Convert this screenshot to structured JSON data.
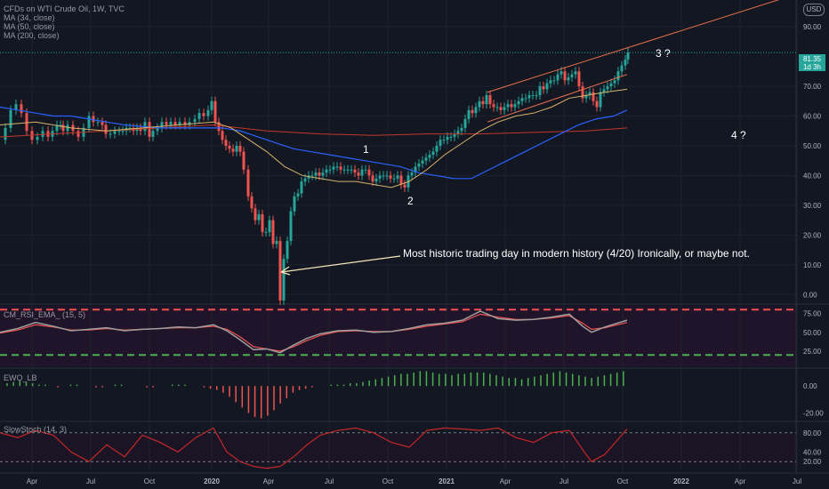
{
  "legend": {
    "symbol": "CFDs on WTI Crude Oil, 1W, TVC",
    "ma1": "MA (34, close)",
    "ma2": "MA (50, close)",
    "ma3": "MA (200, close)"
  },
  "currency": "USD",
  "last_price": {
    "value": "81.35",
    "countdown": "1d 3h"
  },
  "annotations": {
    "wave1": "1",
    "wave2": "2",
    "wave3": "3 ?",
    "wave4": "4 ?",
    "note": "Most historic trading day in modern history (4/20) Ironically, or maybe not."
  },
  "panes": {
    "rsi": "CM_RSI_EMA_ (15, 5)",
    "ewo": "EWO_LB",
    "stoch": "SlowStoch (14, 3)"
  },
  "colors": {
    "background": "#131722",
    "up": "#26a69a",
    "down": "#ef5350",
    "ma34": "#d9b36c",
    "ma50": "#2962ff",
    "ma200": "#c0392b",
    "trendline": "#e8704c"
  },
  "chart_data": {
    "type": "candlestick",
    "timeframe": "1W",
    "x_axis_labels": [
      "Apr",
      "Jul",
      "Oct",
      "2020",
      "Apr",
      "Jul",
      "Oct",
      "2021",
      "Apr",
      "Jul",
      "Oct",
      "2022",
      "Apr",
      "Jul"
    ],
    "price_axis": {
      "ticks": [
        "0.00",
        "10.00",
        "20.00",
        "30.00",
        "40.00",
        "50.00",
        "60.00",
        "70.00",
        "90.00"
      ],
      "range": [
        -2,
        99
      ]
    },
    "rsi_axis": {
      "ticks": [
        "25.00",
        "50.00",
        "75.00"
      ],
      "range": [
        5,
        85
      ]
    },
    "ewo_axis": {
      "ticks": [
        "0.00",
        "-20.00"
      ],
      "range": [
        -25,
        12
      ]
    },
    "stoch_axis": {
      "ticks": [
        "20.00",
        "40.00",
        "80.00"
      ],
      "range": [
        0,
        100
      ]
    },
    "price_path": [
      [
        0,
        52
      ],
      [
        6,
        56
      ],
      [
        12,
        62
      ],
      [
        18,
        64
      ],
      [
        24,
        61
      ],
      [
        30,
        55
      ],
      [
        36,
        52
      ],
      [
        42,
        53
      ],
      [
        48,
        55
      ],
      [
        54,
        53
      ],
      [
        59,
        55
      ],
      [
        64,
        57
      ],
      [
        68,
        57
      ],
      [
        71,
        55
      ],
      [
        76,
        57
      ],
      [
        82,
        55
      ],
      [
        88,
        53
      ],
      [
        94,
        56
      ],
      [
        100,
        60
      ],
      [
        105,
        58
      ],
      [
        110,
        58
      ],
      [
        115,
        57
      ],
      [
        119,
        54
      ],
      [
        124,
        54
      ],
      [
        129,
        55
      ],
      [
        134,
        55
      ],
      [
        138,
        55
      ],
      [
        142,
        56
      ],
      [
        146,
        56
      ],
      [
        150,
        55
      ],
      [
        154,
        56
      ],
      [
        158,
        55
      ],
      [
        163,
        58
      ],
      [
        168,
        53
      ],
      [
        172,
        55
      ],
      [
        177,
        56
      ],
      [
        182,
        58
      ],
      [
        187,
        57
      ],
      [
        192,
        58
      ],
      [
        197,
        57
      ],
      [
        202,
        58
      ],
      [
        208,
        57
      ],
      [
        213,
        58
      ],
      [
        219,
        59
      ],
      [
        224,
        61
      ],
      [
        229,
        60
      ],
      [
        234,
        62
      ],
      [
        238,
        65
      ],
      [
        242,
        58
      ],
      [
        246,
        55
      ],
      [
        250,
        52
      ],
      [
        254,
        50
      ],
      [
        258,
        49
      ],
      [
        262,
        48
      ],
      [
        266,
        50
      ],
      [
        270,
        48
      ],
      [
        274,
        42
      ],
      [
        279,
        33
      ],
      [
        283,
        29
      ],
      [
        287,
        25
      ],
      [
        291,
        27
      ],
      [
        295,
        21
      ],
      [
        299,
        21
      ],
      [
        303,
        25
      ],
      [
        307,
        17
      ],
      [
        311,
        18
      ],
      [
        315,
        -2
      ],
      [
        319,
        12
      ],
      [
        323,
        18
      ],
      [
        327,
        28
      ],
      [
        331,
        33
      ],
      [
        335,
        34
      ],
      [
        339,
        38
      ],
      [
        343,
        39
      ],
      [
        347,
        40
      ],
      [
        351,
        40
      ],
      [
        355,
        41
      ],
      [
        359,
        40
      ],
      [
        363,
        41
      ],
      [
        367,
        42
      ],
      [
        371,
        42
      ],
      [
        375,
        43
      ],
      [
        379,
        43
      ],
      [
        383,
        42
      ],
      [
        387,
        42
      ],
      [
        391,
        42
      ],
      [
        395,
        42
      ],
      [
        399,
        41
      ],
      [
        403,
        40
      ],
      [
        407,
        42
      ],
      [
        411,
        42
      ],
      [
        415,
        40
      ],
      [
        419,
        38
      ],
      [
        423,
        39
      ],
      [
        427,
        40
      ],
      [
        431,
        40
      ],
      [
        435,
        40
      ],
      [
        439,
        39
      ],
      [
        443,
        39
      ],
      [
        447,
        40
      ],
      [
        451,
        37
      ],
      [
        455,
        36
      ],
      [
        459,
        40
      ],
      [
        463,
        41
      ],
      [
        467,
        43
      ],
      [
        471,
        44
      ],
      [
        475,
        45
      ],
      [
        479,
        46
      ],
      [
        483,
        47
      ],
      [
        487,
        48
      ],
      [
        491,
        50
      ],
      [
        495,
        52
      ],
      [
        499,
        52
      ],
      [
        503,
        53
      ],
      [
        507,
        53
      ],
      [
        511,
        54
      ],
      [
        515,
        55
      ],
      [
        519,
        56
      ],
      [
        523,
        59
      ],
      [
        527,
        62
      ],
      [
        531,
        61
      ],
      [
        535,
        63
      ],
      [
        539,
        65
      ],
      [
        543,
        64
      ],
      [
        547,
        67
      ],
      [
        551,
        64
      ],
      [
        555,
        63
      ],
      [
        559,
        63
      ],
      [
        563,
        62
      ],
      [
        567,
        63
      ],
      [
        571,
        64
      ],
      [
        575,
        63
      ],
      [
        579,
        64
      ],
      [
        583,
        65
      ],
      [
        587,
        66
      ],
      [
        591,
        66
      ],
      [
        595,
        67
      ],
      [
        599,
        67
      ],
      [
        603,
        67
      ],
      [
        607,
        70
      ],
      [
        611,
        69
      ],
      [
        615,
        71
      ],
      [
        619,
        72
      ],
      [
        623,
        72
      ],
      [
        627,
        74
      ],
      [
        631,
        75
      ],
      [
        635,
        72
      ],
      [
        639,
        73
      ],
      [
        643,
        74
      ],
      [
        647,
        75
      ],
      [
        651,
        70
      ],
      [
        655,
        66
      ],
      [
        659,
        67
      ],
      [
        663,
        68
      ],
      [
        667,
        65
      ],
      [
        671,
        63
      ],
      [
        675,
        68
      ],
      [
        679,
        69
      ],
      [
        683,
        70
      ],
      [
        687,
        71
      ],
      [
        691,
        72
      ],
      [
        695,
        75
      ],
      [
        699,
        77
      ],
      [
        703,
        79
      ],
      [
        706,
        81.35
      ]
    ],
    "ma34_path": [
      [
        0,
        57
      ],
      [
        40,
        58
      ],
      [
        80,
        56
      ],
      [
        120,
        55
      ],
      [
        160,
        56
      ],
      [
        200,
        57
      ],
      [
        240,
        58
      ],
      [
        260,
        56
      ],
      [
        280,
        52
      ],
      [
        300,
        48
      ],
      [
        320,
        43
      ],
      [
        340,
        40
      ],
      [
        360,
        39
      ],
      [
        380,
        38
      ],
      [
        400,
        38
      ],
      [
        420,
        37
      ],
      [
        440,
        36
      ],
      [
        460,
        38
      ],
      [
        480,
        42
      ],
      [
        500,
        47
      ],
      [
        520,
        51
      ],
      [
        540,
        55
      ],
      [
        560,
        58
      ],
      [
        580,
        60
      ],
      [
        600,
        61
      ],
      [
        620,
        63
      ],
      [
        640,
        66
      ],
      [
        660,
        67
      ],
      [
        680,
        68
      ],
      [
        705,
        69
      ]
    ],
    "ma50_path": [
      [
        0,
        63
      ],
      [
        20,
        62
      ],
      [
        40,
        61
      ],
      [
        60,
        60
      ],
      [
        80,
        60
      ],
      [
        100,
        59
      ],
      [
        140,
        57
      ],
      [
        180,
        56
      ],
      [
        220,
        56
      ],
      [
        250,
        56
      ],
      [
        270,
        55
      ],
      [
        290,
        53
      ],
      [
        310,
        51
      ],
      [
        330,
        49
      ],
      [
        350,
        48
      ],
      [
        370,
        47
      ],
      [
        390,
        46
      ],
      [
        410,
        45
      ],
      [
        430,
        44
      ],
      [
        450,
        43
      ],
      [
        470,
        41
      ],
      [
        490,
        40
      ],
      [
        510,
        39
      ],
      [
        530,
        39
      ],
      [
        550,
        42
      ],
      [
        570,
        45
      ],
      [
        590,
        48
      ],
      [
        610,
        51
      ],
      [
        630,
        54
      ],
      [
        650,
        57
      ],
      [
        670,
        59
      ],
      [
        690,
        60
      ],
      [
        705,
        62
      ]
    ],
    "ma200_path": [
      [
        0,
        53
      ],
      [
        60,
        54
      ],
      [
        120,
        55
      ],
      [
        180,
        56
      ],
      [
        240,
        57
      ],
      [
        300,
        55
      ],
      [
        360,
        54
      ],
      [
        420,
        53.5
      ],
      [
        480,
        54
      ],
      [
        540,
        54
      ],
      [
        600,
        54.5
      ],
      [
        660,
        55
      ],
      [
        705,
        56
      ]
    ],
    "trendline_upper": [
      [
        548,
        68
      ],
      [
        885,
        100
      ]
    ],
    "rsi_series": [
      [
        0,
        50
      ],
      [
        20,
        55
      ],
      [
        40,
        63
      ],
      [
        60,
        58
      ],
      [
        80,
        52
      ],
      [
        100,
        54
      ],
      [
        120,
        56
      ],
      [
        140,
        52
      ],
      [
        160,
        54
      ],
      [
        180,
        55
      ],
      [
        200,
        57
      ],
      [
        220,
        56
      ],
      [
        240,
        60
      ],
      [
        255,
        52
      ],
      [
        270,
        40
      ],
      [
        285,
        27
      ],
      [
        300,
        28
      ],
      [
        315,
        23
      ],
      [
        330,
        33
      ],
      [
        345,
        42
      ],
      [
        360,
        48
      ],
      [
        380,
        52
      ],
      [
        400,
        53
      ],
      [
        420,
        50
      ],
      [
        440,
        51
      ],
      [
        460,
        55
      ],
      [
        480,
        60
      ],
      [
        500,
        62
      ],
      [
        520,
        66
      ],
      [
        540,
        78
      ],
      [
        560,
        68
      ],
      [
        580,
        66
      ],
      [
        600,
        67
      ],
      [
        620,
        70
      ],
      [
        640,
        74
      ],
      [
        655,
        58
      ],
      [
        665,
        50
      ],
      [
        680,
        57
      ],
      [
        705,
        66
      ]
    ],
    "rsi_ema_series": [
      [
        0,
        49
      ],
      [
        20,
        53
      ],
      [
        40,
        60
      ],
      [
        60,
        57
      ],
      [
        80,
        53
      ],
      [
        100,
        53
      ],
      [
        120,
        55
      ],
      [
        140,
        53
      ],
      [
        160,
        54
      ],
      [
        180,
        55
      ],
      [
        200,
        56
      ],
      [
        220,
        56
      ],
      [
        240,
        58
      ],
      [
        255,
        54
      ],
      [
        270,
        44
      ],
      [
        285,
        31
      ],
      [
        300,
        28
      ],
      [
        315,
        25
      ],
      [
        330,
        31
      ],
      [
        345,
        39
      ],
      [
        360,
        46
      ],
      [
        380,
        51
      ],
      [
        400,
        52
      ],
      [
        420,
        51
      ],
      [
        440,
        51
      ],
      [
        460,
        54
      ],
      [
        480,
        58
      ],
      [
        500,
        61
      ],
      [
        520,
        64
      ],
      [
        540,
        74
      ],
      [
        560,
        70
      ],
      [
        580,
        67
      ],
      [
        600,
        67
      ],
      [
        620,
        69
      ],
      [
        640,
        72
      ],
      [
        655,
        62
      ],
      [
        665,
        54
      ],
      [
        680,
        56
      ],
      [
        705,
        63
      ]
    ],
    "rsi_levels": [
      80,
      20
    ],
    "ewo_series": [
      2,
      3,
      4,
      3,
      2,
      1,
      1,
      0,
      -1,
      0,
      1,
      1,
      0,
      0,
      -1,
      -1,
      0,
      1,
      1,
      0,
      0,
      0,
      -1,
      -1,
      0,
      0,
      1,
      1,
      1,
      0,
      0,
      -1,
      -2,
      -3,
      -5,
      -8,
      -12,
      -16,
      -20,
      -23,
      -24,
      -22,
      -18,
      -13,
      -9,
      -5,
      -3,
      -2,
      -1,
      0,
      0,
      1,
      1,
      1,
      2,
      2,
      3,
      4,
      5,
      6,
      7,
      8,
      9,
      9,
      10,
      11,
      11,
      10,
      9,
      9,
      8,
      9,
      9,
      10,
      10,
      10,
      9,
      8,
      7,
      6,
      6,
      5,
      6,
      7,
      8,
      9,
      10,
      11,
      10,
      9,
      8,
      7,
      6,
      7,
      8,
      9,
      10,
      11
    ],
    "stoch_series": [
      [
        0,
        80
      ],
      [
        20,
        70
      ],
      [
        40,
        85
      ],
      [
        60,
        75
      ],
      [
        80,
        40
      ],
      [
        100,
        20
      ],
      [
        120,
        55
      ],
      [
        140,
        30
      ],
      [
        160,
        75
      ],
      [
        180,
        60
      ],
      [
        200,
        40
      ],
      [
        220,
        70
      ],
      [
        240,
        90
      ],
      [
        255,
        40
      ],
      [
        270,
        20
      ],
      [
        285,
        10
      ],
      [
        300,
        6
      ],
      [
        315,
        10
      ],
      [
        330,
        30
      ],
      [
        345,
        55
      ],
      [
        360,
        75
      ],
      [
        380,
        85
      ],
      [
        400,
        90
      ],
      [
        420,
        80
      ],
      [
        440,
        60
      ],
      [
        460,
        50
      ],
      [
        480,
        85
      ],
      [
        500,
        90
      ],
      [
        520,
        88
      ],
      [
        540,
        85
      ],
      [
        560,
        90
      ],
      [
        580,
        70
      ],
      [
        600,
        60
      ],
      [
        620,
        80
      ],
      [
        640,
        85
      ],
      [
        655,
        45
      ],
      [
        665,
        20
      ],
      [
        680,
        35
      ],
      [
        705,
        88
      ]
    ],
    "stoch_levels": [
      80,
      20
    ]
  }
}
